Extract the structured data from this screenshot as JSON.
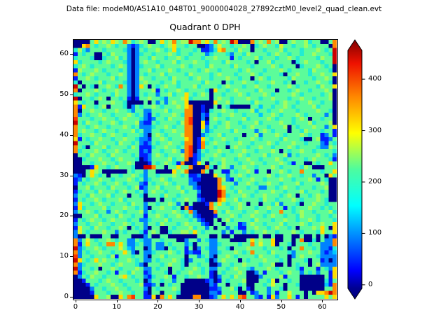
{
  "figure": {
    "data_file_label": "Data file: modeM0/AS1A10_048T01_9000004028_27892cztM0_level2_quad_clean.evt",
    "title": "Quadrant 0 DPH",
    "background": "#ffffff"
  },
  "axes": {
    "x_ticks": [
      0,
      10,
      20,
      30,
      40,
      50,
      60
    ],
    "y_ticks": [
      0,
      10,
      20,
      30,
      40,
      50,
      60
    ],
    "x_range": [
      0,
      64
    ],
    "y_range": [
      0,
      64
    ]
  },
  "colorbar": {
    "ticks": [
      0,
      100,
      200,
      300,
      400
    ],
    "vmin": -7,
    "vmax": 456,
    "extend": "both",
    "colormap": "jet",
    "gradient_stops_bottom_to_top": [
      [
        "0%",
        "#000080"
      ],
      [
        "4%",
        "#000090"
      ],
      [
        "11%",
        "#0000ff"
      ],
      [
        "36%",
        "#00ffff"
      ],
      [
        "50%",
        "#4dfc9f"
      ],
      [
        "64%",
        "#ffff00"
      ],
      [
        "78%",
        "#ff8800"
      ],
      [
        "91%",
        "#ee1100"
      ],
      [
        "100%",
        "#800000"
      ]
    ]
  },
  "chart_data": {
    "type": "heatmap",
    "title": "Quadrant 0 DPH",
    "suptitle": "Data file: modeM0/AS1A10_048T01_9000004028_27892cztM0_level2_quad_clean.evt",
    "colormap": "jet",
    "grid_size": [
      64,
      64
    ],
    "x_range": [
      0,
      64
    ],
    "y_range": [
      0,
      64
    ],
    "value_ticks": [
      0,
      100,
      200,
      300,
      400
    ],
    "palette": {
      "0": {
        "hex": "#000088",
        "value": 0
      },
      "1": {
        "hex": "#001cff",
        "value": 60
      },
      "2": {
        "hex": "#0082ff",
        "value": 110
      },
      "3": {
        "hex": "#00c8ff",
        "value": 150
      },
      "4": {
        "hex": "#21ecd3",
        "value": 185
      },
      "5": {
        "hex": "#5cfc9a",
        "value": 215
      },
      "6": {
        "hex": "#a0fd5e",
        "value": 245
      },
      "7": {
        "hex": "#dcf52e",
        "value": 275
      },
      "8": {
        "hex": "#ffdd00",
        "value": 310
      },
      "9": {
        "hex": "#ff8800",
        "value": 360
      },
      "A": {
        "hex": "#ff3300",
        "value": 405
      },
      "B": {
        "hex": "#cc0000",
        "value": 450
      }
    },
    "rows_top_to_bottom": true,
    "grid": [
      "0000585658659645650058569566B9968595 65B9000956595600565564550059569",
      "0089545565455212456554568554550012575545565045655475545565455509",
      "4642555455554202545565458455545112489554655055455564555455565 45B",
      "1545500546555202455455565455455524555425546555545655455455655 54B",
      "4555400455645202554655455654555455655515455564555455654555546 55B",
      "8455554565554202565545556455565545554655554505564555504565554 55B",
      "4565455554565202455564555565455546555546555455556545550455565450",
      "1655565455545202556455565455554565545555456555455565455554655540",
      "9545655545565202545556455554655554565554555654555540556554556558",
      "1556545556455202655455546555456554555655455056545555465555455650",
      "4055556455554202565554556455555465550545565545556554505545565540",
      "B505405565495202850545655455564555545655545565545555654555546558",
      "9055565455655202555615455654555540855456555546555055456554555650",
      "4556545554655202545525564558545650554555654555654555565455554560",
      "B055456505545101556554255568455550565545556554556555455655455560",
      "8545505556554000050525256558000000855645555465555456554556554550",
      "9185545605554025455654555658900100505400000553554556545555645550",
      "9055655455655425522555645559900104556554555635545565554555565540",
      "9254556554555654521545556549900215545565545553556545556545555250",
      "A5554556554565554212554655 59A00205655455564555565455545650554550",
      "B5465545565455562115455554 69A00815545655455564555565545556455560",
      "9554565545556545222455654559900825455655545655545556054555655258",
      "9565545655455564522554556559900524555546555525654555055465554551",
      "9455655456554555420565455569900245564555505562555654555654551251",
      "8154556554556554221556545558901854556554555654555546555400561125",
      "B5554655554655452125455655 49901945655455655455565455565545552154",
      "9540555645555465111455655459A019554550565545565545556545555 42265",
      "94555654556545551215545565 29A02545565545565545556505455655455554",
      "05546555465555451125654555 69A12455654555654555645556254555565452",
      "0045556554565554012555564559012554556554556554555654555545655541",
      "0055455655455650001545654190018505546555455655455565415500 545 58",
      "00001855456555400BB9550558559000940565255655455565455554650005558",
      "0005865000000545525500008569000950551154556515505565455955554558",
      "2105854505545565425545556545112000855255654555565455655455255 08",
      "1254556554555654524556545555211000096215455655455565545556515400",
      "1545565455654555215455654555220000095552556545565545556455556500",
      "0556455546555456125564555645521000098545554552255456554555455600",
      "145554655545655452565545556455200 00B95546555455565545556455 54500",
      "255465556455505540555465545555100 00B94555654556555456505545 65500",
      "1545565455564555500050554556552100098556455554655455565455565400",
      "2855456554555465525545565250500019585455650550554625554055 6554",
      "1845555645556554520556554509100009655545655545565551545556554 54",
      "2556545525654555625455556545920000954655545565545595545655455564",
      "0055564555465545515565455654521000155565455655456554554655 54554",
      "1545655456555455224555645555452100505645555465554556554556545554",
      "2554556554556545525546555456555210550555125655455564555654556558",
      "1755465545565054520550054555645525055254115565545655450555658508",
      "2754555655254555415650045566585455552515525455655455565455548558",
      "2005000550055500025005500000005550050050000005005005500500505021",
      "9257545565455225422554555002552542255500005856558005505900405229",
      "9158554599585224522522545552405552245555455957558055405554552229",
      "B2455654555753255025220545515025422554055565554555450559554 52214",
      "9254556554558520522455565451211552245556545955546555425556552123",
      "A2554555461555455205564555505524520556545555465554550256555 42222",
      "B8545856554556545225455565402555402565550545556555450555405 51202",
      "9245556554565554205554565540554550025545565554556005054550562222",
      "B2554505565455565225455055455654522554565542555654555541555 15428",
      "9145565545155465512555405455655451054555650025155545655254525518",
      "0254655455568545521455651554556551025546550002555561555000000518",
      "0015554565545554502554552550000012015455560005547055455000000415",
      "0001545556554555611250545500000002155055450055457550554000000319",
      "0000255455655455520545556500000001125564051055525540555000000559",
      "000015554556554551055055540000000221555500512552515575550 50889B9",
      "00000855600859A551180958500009900125858 59A552151825585150555 5858"
    ]
  }
}
